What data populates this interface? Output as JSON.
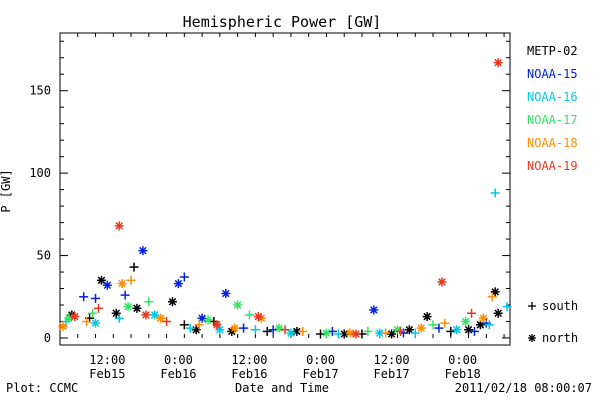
{
  "chart_data": {
    "type": "scatter",
    "title": "Hemispheric Power [GW]",
    "ylabel": "P [GW]",
    "xlabel": "Date and Time",
    "ylim": [
      0,
      185
    ],
    "y_ticks": [
      0,
      50,
      100,
      150
    ],
    "x_range": [
      "2011-02-15 04:00",
      "2011-02-18 08:00"
    ],
    "x_ticks": [
      {
        "time": "2011-02-15 12:00",
        "label1": "12:00",
        "label2": "Feb15"
      },
      {
        "time": "2011-02-16 00:00",
        "label1": "0:00",
        "label2": "Feb16"
      },
      {
        "time": "2011-02-16 12:00",
        "label1": "12:00",
        "label2": "Feb16"
      },
      {
        "time": "2011-02-17 00:00",
        "label1": "0:00",
        "label2": "Feb17"
      },
      {
        "time": "2011-02-17 12:00",
        "label1": "12:00",
        "label2": "Feb17"
      },
      {
        "time": "2011-02-18 00:00",
        "label1": "0:00",
        "label2": "Feb18"
      }
    ],
    "hemisphere_legend": [
      {
        "symbol": "+",
        "label": "south"
      },
      {
        "symbol": "*",
        "label": "north"
      }
    ],
    "series": [
      {
        "name": "METP-02",
        "color": "#000000",
        "points": [
          {
            "t": "2011-02-15 06:00",
            "v": 14,
            "h": "north"
          },
          {
            "t": "2011-02-15 09:00",
            "v": 12,
            "h": "south"
          },
          {
            "t": "2011-02-15 11:00",
            "v": 35,
            "h": "north"
          },
          {
            "t": "2011-02-15 13:30",
            "v": 15,
            "h": "north"
          },
          {
            "t": "2011-02-15 16:30",
            "v": 43,
            "h": "south"
          },
          {
            "t": "2011-02-15 17:00",
            "v": 18,
            "h": "north"
          },
          {
            "t": "2011-02-15 23:00",
            "v": 22,
            "h": "north"
          },
          {
            "t": "2011-02-16 01:00",
            "v": 8,
            "h": "south"
          },
          {
            "t": "2011-02-16 03:00",
            "v": 5,
            "h": "north"
          },
          {
            "t": "2011-02-16 06:00",
            "v": 10,
            "h": "south"
          },
          {
            "t": "2011-02-16 09:00",
            "v": 4,
            "h": "north"
          },
          {
            "t": "2011-02-16 15:00",
            "v": 4,
            "h": "south"
          },
          {
            "t": "2011-02-16 20:00",
            "v": 4,
            "h": "north"
          },
          {
            "t": "2011-02-17 00:00",
            "v": 2,
            "h": "south"
          },
          {
            "t": "2011-02-17 04:00",
            "v": 2,
            "h": "north"
          },
          {
            "t": "2011-02-17 07:00",
            "v": 2,
            "h": "south"
          },
          {
            "t": "2011-02-17 12:00",
            "v": 2,
            "h": "north"
          },
          {
            "t": "2011-02-17 15:00",
            "v": 5,
            "h": "north"
          },
          {
            "t": "2011-02-17 18:00",
            "v": 13,
            "h": "north"
          },
          {
            "t": "2011-02-17 22:00",
            "v": 4,
            "h": "south"
          },
          {
            "t": "2011-02-18 01:00",
            "v": 5,
            "h": "north"
          },
          {
            "t": "2011-02-18 03:00",
            "v": 8,
            "h": "north"
          },
          {
            "t": "2011-02-18 05:30",
            "v": 28,
            "h": "north"
          },
          {
            "t": "2011-02-18 06:00",
            "v": 15,
            "h": "north"
          }
        ]
      },
      {
        "name": "NOAA-15",
        "color": "#0022dd",
        "points": [
          {
            "t": "2011-02-15 08:00",
            "v": 25,
            "h": "south"
          },
          {
            "t": "2011-02-15 10:00",
            "v": 24,
            "h": "south"
          },
          {
            "t": "2011-02-15 12:00",
            "v": 32,
            "h": "north"
          },
          {
            "t": "2011-02-15 15:00",
            "v": 26,
            "h": "south"
          },
          {
            "t": "2011-02-15 18:00",
            "v": 53,
            "h": "north"
          },
          {
            "t": "2011-02-16 00:00",
            "v": 33,
            "h": "north"
          },
          {
            "t": "2011-02-16 01:00",
            "v": 37,
            "h": "south"
          },
          {
            "t": "2011-02-16 04:00",
            "v": 12,
            "h": "north"
          },
          {
            "t": "2011-02-16 08:00",
            "v": 27,
            "h": "north"
          },
          {
            "t": "2011-02-16 11:00",
            "v": 6,
            "h": "south"
          },
          {
            "t": "2011-02-16 16:00",
            "v": 5,
            "h": "south"
          },
          {
            "t": "2011-02-17 02:00",
            "v": 4,
            "h": "south"
          },
          {
            "t": "2011-02-17 09:00",
            "v": 17,
            "h": "north"
          },
          {
            "t": "2011-02-17 14:00",
            "v": 3,
            "h": "south"
          },
          {
            "t": "2011-02-17 20:00",
            "v": 6,
            "h": "south"
          },
          {
            "t": "2011-02-18 02:00",
            "v": 4,
            "h": "south"
          },
          {
            "t": "2011-02-18 04:00",
            "v": 9,
            "h": "south"
          }
        ]
      },
      {
        "name": "NOAA-16",
        "color": "#00c8e6",
        "points": [
          {
            "t": "2011-02-15 05:00",
            "v": 10,
            "h": "south"
          },
          {
            "t": "2011-02-15 10:00",
            "v": 9,
            "h": "north"
          },
          {
            "t": "2011-02-15 14:00",
            "v": 12,
            "h": "south"
          },
          {
            "t": "2011-02-15 20:00",
            "v": 14,
            "h": "north"
          },
          {
            "t": "2011-02-16 02:00",
            "v": 6,
            "h": "south"
          },
          {
            "t": "2011-02-16 07:00",
            "v": 5,
            "h": "north"
          },
          {
            "t": "2011-02-16 13:00",
            "v": 5,
            "h": "south"
          },
          {
            "t": "2011-02-16 19:00",
            "v": 3,
            "h": "north"
          },
          {
            "t": "2011-02-17 03:00",
            "v": 2,
            "h": "south"
          },
          {
            "t": "2011-02-17 10:00",
            "v": 3,
            "h": "north"
          },
          {
            "t": "2011-02-17 16:00",
            "v": 3,
            "h": "south"
          },
          {
            "t": "2011-02-17 23:00",
            "v": 5,
            "h": "north"
          },
          {
            "t": "2011-02-18 04:30",
            "v": 8,
            "h": "south"
          },
          {
            "t": "2011-02-18 05:30",
            "v": 88,
            "h": "south"
          },
          {
            "t": "2011-02-18 07:30",
            "v": 19,
            "h": "south"
          }
        ]
      },
      {
        "name": "NOAA-17",
        "color": "#33e266",
        "points": [
          {
            "t": "2011-02-15 05:30",
            "v": 12,
            "h": "north"
          },
          {
            "t": "2011-02-15 09:30",
            "v": 15,
            "h": "south"
          },
          {
            "t": "2011-02-15 15:30",
            "v": 19,
            "h": "north"
          },
          {
            "t": "2011-02-15 19:00",
            "v": 22,
            "h": "south"
          },
          {
            "t": "2011-02-16 05:00",
            "v": 11,
            "h": "north"
          },
          {
            "t": "2011-02-16 10:00",
            "v": 20,
            "h": "north"
          },
          {
            "t": "2011-02-16 12:00",
            "v": 14,
            "h": "south"
          },
          {
            "t": "2011-02-16 17:00",
            "v": 6,
            "h": "north"
          },
          {
            "t": "2011-02-17 01:00",
            "v": 3,
            "h": "north"
          },
          {
            "t": "2011-02-17 08:00",
            "v": 4,
            "h": "south"
          },
          {
            "t": "2011-02-17 13:00",
            "v": 5,
            "h": "north"
          },
          {
            "t": "2011-02-17 19:00",
            "v": 8,
            "h": "south"
          },
          {
            "t": "2011-02-18 00:30",
            "v": 10,
            "h": "north"
          }
        ]
      },
      {
        "name": "NOAA-18",
        "color": "#ff8c00",
        "points": [
          {
            "t": "2011-02-15 04:30",
            "v": 7,
            "h": "north"
          },
          {
            "t": "2011-02-15 08:30",
            "v": 10,
            "h": "south"
          },
          {
            "t": "2011-02-15 14:30",
            "v": 33,
            "h": "north"
          },
          {
            "t": "2011-02-15 16:00",
            "v": 35,
            "h": "south"
          },
          {
            "t": "2011-02-15 21:00",
            "v": 12,
            "h": "north"
          },
          {
            "t": "2011-02-16 03:30",
            "v": 8,
            "h": "south"
          },
          {
            "t": "2011-02-16 09:30",
            "v": 6,
            "h": "north"
          },
          {
            "t": "2011-02-16 14:00",
            "v": 12,
            "h": "north"
          },
          {
            "t": "2011-02-16 21:00",
            "v": 4,
            "h": "south"
          },
          {
            "t": "2011-02-17 05:00",
            "v": 3,
            "h": "north"
          },
          {
            "t": "2011-02-17 11:00",
            "v": 3,
            "h": "south"
          },
          {
            "t": "2011-02-17 17:00",
            "v": 6,
            "h": "north"
          },
          {
            "t": "2011-02-17 21:00",
            "v": 9,
            "h": "south"
          },
          {
            "t": "2011-02-18 03:30",
            "v": 12,
            "h": "north"
          },
          {
            "t": "2011-02-18 05:00",
            "v": 25,
            "h": "south"
          }
        ]
      },
      {
        "name": "NOAA-19",
        "color": "#e83820",
        "points": [
          {
            "t": "2011-02-15 06:30",
            "v": 13,
            "h": "north"
          },
          {
            "t": "2011-02-15 10:30",
            "v": 18,
            "h": "south"
          },
          {
            "t": "2011-02-15 14:00",
            "v": 68,
            "h": "north"
          },
          {
            "t": "2011-02-15 18:30",
            "v": 14,
            "h": "north"
          },
          {
            "t": "2011-02-15 22:00",
            "v": 10,
            "h": "south"
          },
          {
            "t": "2011-02-16 06:30",
            "v": 8,
            "h": "north"
          },
          {
            "t": "2011-02-16 13:30",
            "v": 13,
            "h": "north"
          },
          {
            "t": "2011-02-16 18:00",
            "v": 5,
            "h": "south"
          },
          {
            "t": "2011-02-17 06:00",
            "v": 2,
            "h": "north"
          },
          {
            "t": "2011-02-17 13:30",
            "v": 4,
            "h": "south"
          },
          {
            "t": "2011-02-17 20:30",
            "v": 34,
            "h": "north"
          },
          {
            "t": "2011-02-18 01:30",
            "v": 15,
            "h": "south"
          },
          {
            "t": "2011-02-18 06:00",
            "v": 167,
            "h": "north"
          }
        ]
      }
    ]
  },
  "footer": {
    "left": "Plot: CCMC",
    "right": "2011/02/18 08:00:07"
  }
}
